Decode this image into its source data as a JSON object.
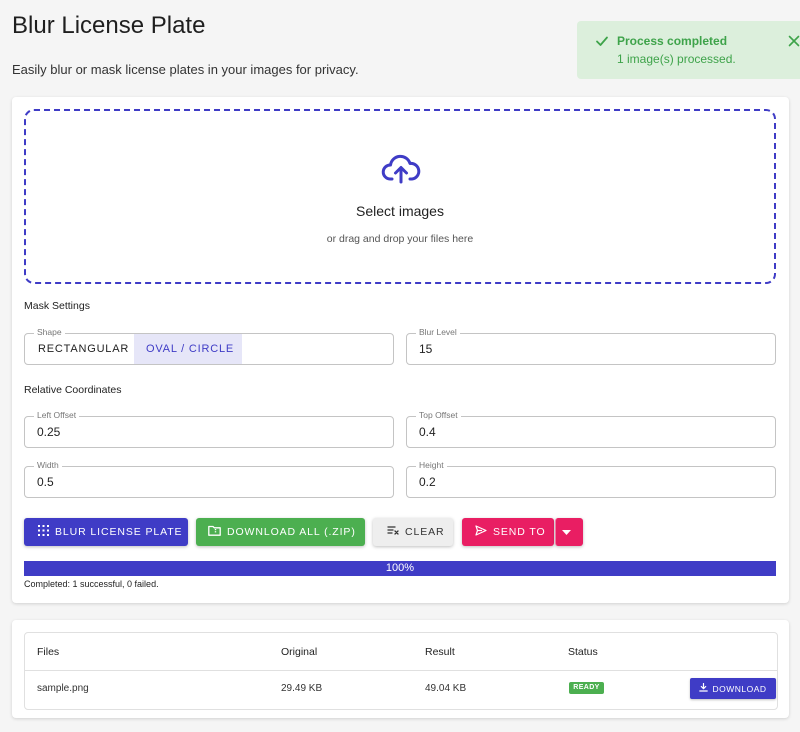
{
  "page": {
    "title": "Blur License Plate",
    "subtitle": "Easily blur or mask license plates in your images for privacy."
  },
  "toast": {
    "title": "Process completed",
    "message": "1 image(s) processed."
  },
  "dropzone": {
    "title": "Select images",
    "subtitle": "or drag and drop your files here"
  },
  "mask_settings": {
    "heading": "Mask Settings",
    "shape_label": "Shape",
    "shape_options": [
      "RECTANGULAR",
      "OVAL / CIRCLE"
    ],
    "shape_selected": "OVAL / CIRCLE",
    "blur_label": "Blur Level",
    "blur_value": "15"
  },
  "coordinates": {
    "heading": "Relative Coordinates",
    "left_offset_label": "Left Offset",
    "left_offset_value": "0.25",
    "top_offset_label": "Top Offset",
    "top_offset_value": "0.4",
    "width_label": "Width",
    "width_value": "0.5",
    "height_label": "Height",
    "height_value": "0.2"
  },
  "actions": {
    "blur_label": "BLUR LICENSE PLATE",
    "zip_label": "DOWNLOAD ALL (.ZIP)",
    "clear_label": "CLEAR",
    "send_label": "SEND TO"
  },
  "progress": {
    "percent": 100,
    "label": "100%",
    "status": "Completed: 1 successful, 0 failed."
  },
  "results": {
    "columns": [
      "Files",
      "Original",
      "Result",
      "Status"
    ],
    "rows": [
      {
        "file": "sample.png",
        "original": "29.49 KB",
        "result": "49.04 KB",
        "status": "READY",
        "action": "DOWNLOAD"
      }
    ]
  },
  "colors": {
    "primary": "#3f3cc6",
    "success": "#4caf50",
    "accent": "#e91e63",
    "toast_bg": "#dcefdc",
    "toast_text": "#3ea34a"
  },
  "icons": {
    "toast_status": "check-icon",
    "toast_close": "close-icon",
    "dropzone": "cloud-upload-icon",
    "blur": "grid-blur-icon",
    "zip": "folder-zip-icon",
    "clear": "clear-icon",
    "send": "send-icon",
    "send_menu": "caret-down-icon",
    "row_download": "download-icon"
  }
}
